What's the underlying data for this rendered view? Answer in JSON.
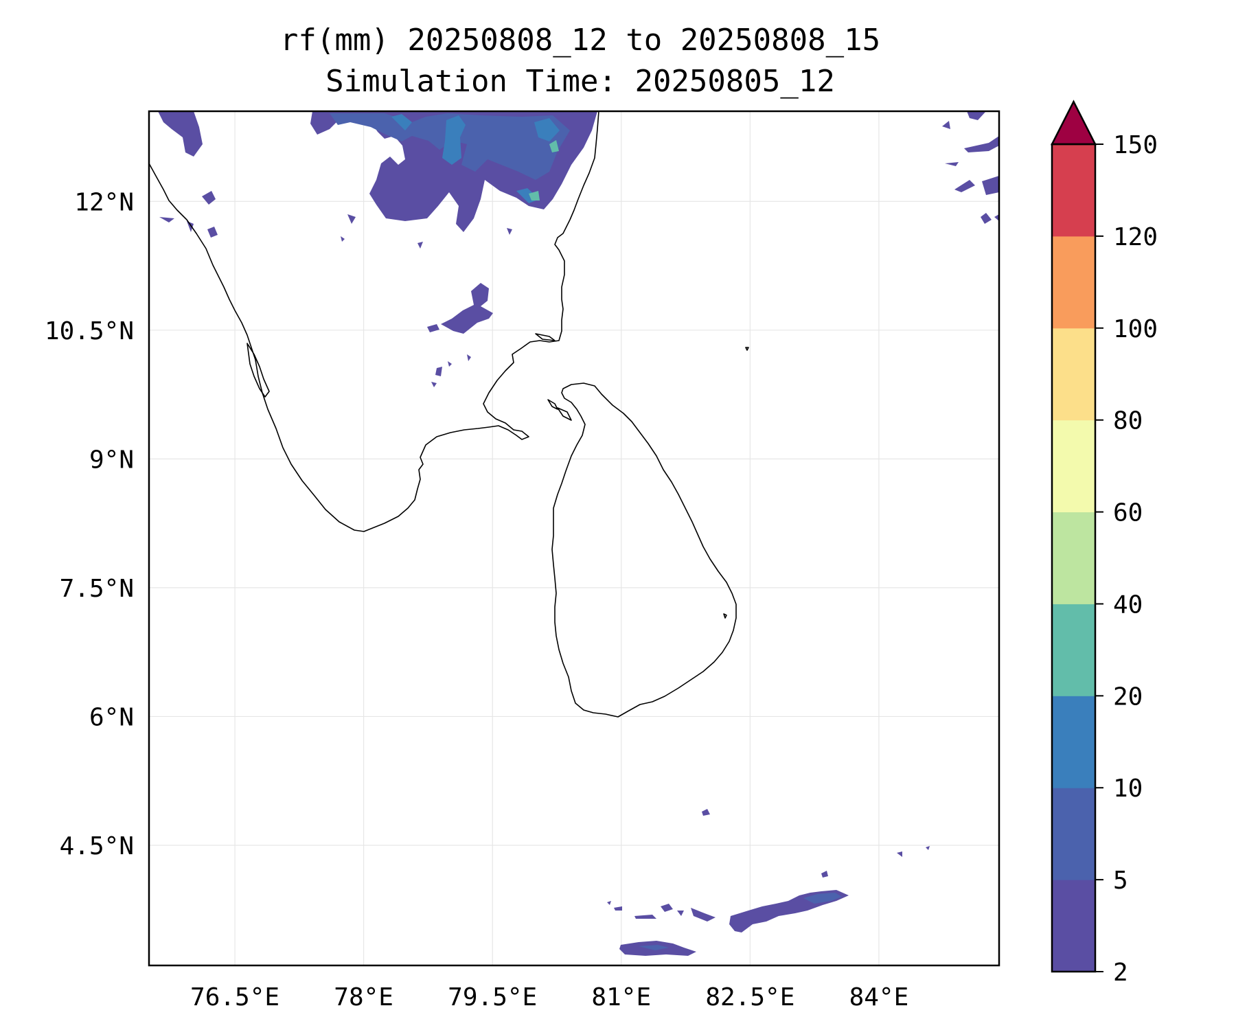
{
  "title": {
    "line1": "rf(mm) 20250808_12 to 20250808_15",
    "line2": "Simulation Time: 20250805_12"
  },
  "map": {
    "extent": {
      "lon_min": 75.5,
      "lon_max": 85.4,
      "lat_min": 3.1,
      "lat_max": 13.05
    },
    "x_ticks": [
      {
        "value": 76.5,
        "label": "76.5°E"
      },
      {
        "value": 78.0,
        "label": "78°E"
      },
      {
        "value": 79.5,
        "label": "79.5°E"
      },
      {
        "value": 81.0,
        "label": "81°E"
      },
      {
        "value": 82.5,
        "label": "82.5°E"
      },
      {
        "value": 84.0,
        "label": "84°E"
      }
    ],
    "y_ticks": [
      {
        "value": 12.0,
        "label": "12°N"
      },
      {
        "value": 10.5,
        "label": "10.5°N"
      },
      {
        "value": 9.0,
        "label": "9°N"
      },
      {
        "value": 7.5,
        "label": "7.5°N"
      },
      {
        "value": 6.0,
        "label": "6°N"
      },
      {
        "value": 4.5,
        "label": "4.5°N"
      }
    ],
    "grid": true
  },
  "colorbar": {
    "levels": [
      {
        "value": 2,
        "label": "2"
      },
      {
        "value": 5,
        "label": "5"
      },
      {
        "value": 10,
        "label": "10"
      },
      {
        "value": 20,
        "label": "20"
      },
      {
        "value": 40,
        "label": "40"
      },
      {
        "value": 60,
        "label": "60"
      },
      {
        "value": 80,
        "label": "80"
      },
      {
        "value": 100,
        "label": "100"
      },
      {
        "value": 120,
        "label": "120"
      },
      {
        "value": 150,
        "label": "150"
      }
    ],
    "colors": [
      "#5a4ea3",
      "#4b62ad",
      "#3a7fbc",
      "#62bdaa",
      "#bde5a0",
      "#f3faad",
      "#fcdf8a",
      "#f99c5c",
      "#d63f4f"
    ],
    "extend_color": "#9e0142"
  },
  "rain_colors": {
    "c2_5": "#5a4ea3",
    "c5_10": "#4b62ad",
    "c10_20": "#3a7fbc",
    "c20_40": "#62bdaa"
  }
}
